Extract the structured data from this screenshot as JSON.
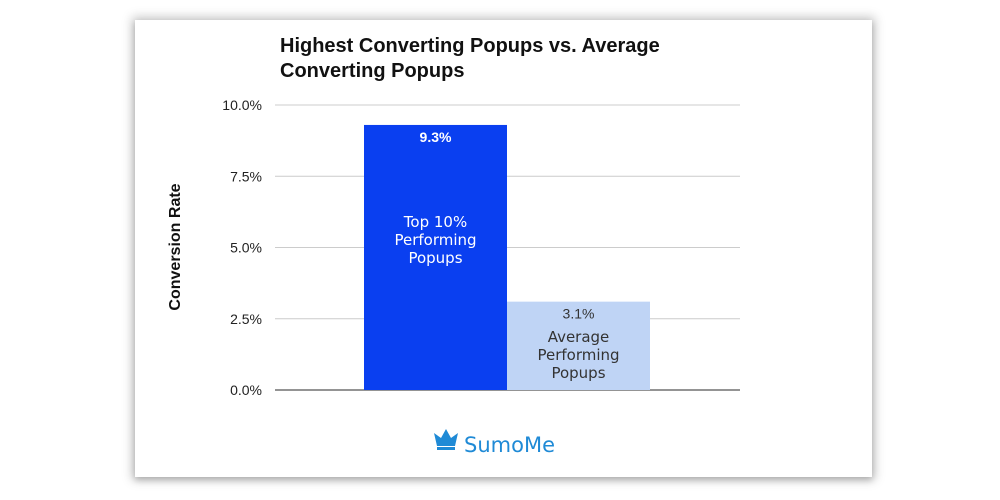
{
  "chart_data": {
    "type": "bar",
    "title_lines": [
      "Highest Converting Popups vs. Average",
      "Converting Popups"
    ],
    "ylabel": "Conversion Rate",
    "ylim": [
      0,
      10
    ],
    "yticks": [
      {
        "value": 0,
        "label": "0.0%"
      },
      {
        "value": 2.5,
        "label": "2.5%"
      },
      {
        "value": 5,
        "label": "5.0%"
      },
      {
        "value": 7.5,
        "label": "7.5%"
      },
      {
        "value": 10,
        "label": "10.0%"
      }
    ],
    "grid": true,
    "bars": [
      {
        "value": 9.3,
        "value_label": "9.3%",
        "label_lines": [
          "Top 10%",
          "Performing",
          "Popups"
        ],
        "color": "#0a3ff0",
        "text_color": "#ffffff"
      },
      {
        "value": 3.1,
        "value_label": "3.1%",
        "label_lines": [
          "Average",
          "Performing",
          "Popups"
        ],
        "color": "#bfd4f5",
        "text_color": "#333333"
      }
    ]
  },
  "branding": {
    "logo_text": "SumoMe",
    "logo_icon": "crown-icon",
    "logo_color": "#1f8ad6"
  }
}
